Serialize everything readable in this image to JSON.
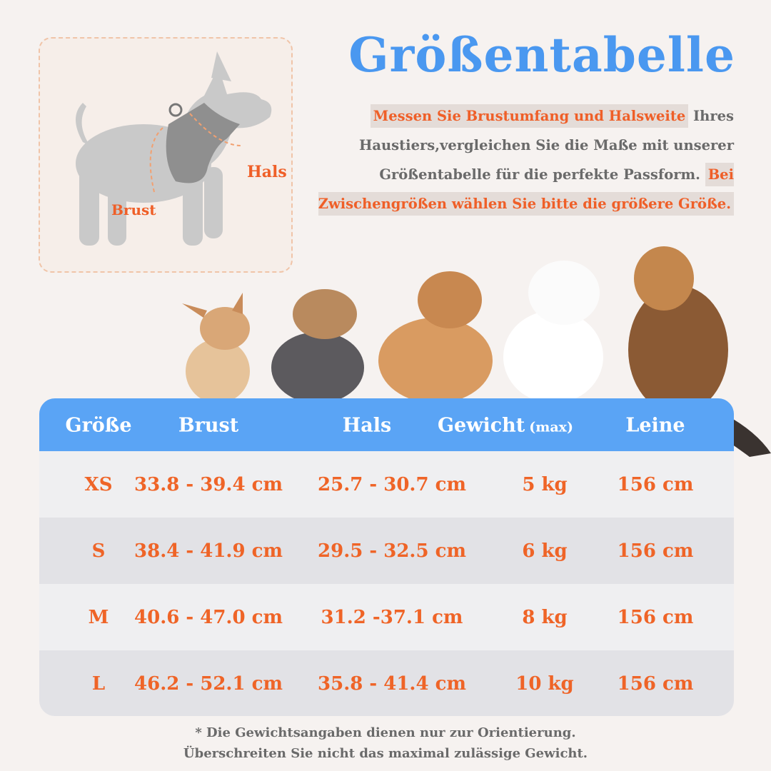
{
  "header": {
    "title": "Größentabelle",
    "intro": {
      "highlight_1": "Messen Sie Brustumfang und Halsweite",
      "text": " Ihres Haustiers,vergleichen Sie die Maße mit unserer Größentabelle für die perfekte Passform. ",
      "highlight_2": "Bei Zwischengrößen wählen Sie bitte die größere Größe."
    }
  },
  "diagram": {
    "neck_label": "Hals",
    "chest_label": "Brust"
  },
  "table": {
    "columns": [
      "Größe",
      "Brust",
      "Hals",
      "Gewicht",
      "Leine"
    ],
    "weight_note": "(max)",
    "rows": [
      [
        "XS",
        "33.8 - 39.4 cm",
        "25.7 - 30.7 cm",
        "5 kg",
        "156 cm"
      ],
      [
        "S",
        "38.4 - 41.9 cm",
        "29.5 - 32.5 cm",
        "6 kg",
        "156 cm"
      ],
      [
        "M",
        "40.6 - 47.0 cm",
        "31.2 -37.1 cm",
        "8 kg",
        "156 cm"
      ],
      [
        "L",
        "46.2 - 52.1 cm",
        "35.8 - 41.4 cm",
        "10 kg",
        "156 cm"
      ]
    ]
  },
  "footnote": [
    "* Die Gewichtsangaben dienen nur zur Orientierung.",
    "Überschreiten Sie nicht das maximal zulässige Gewicht."
  ]
}
